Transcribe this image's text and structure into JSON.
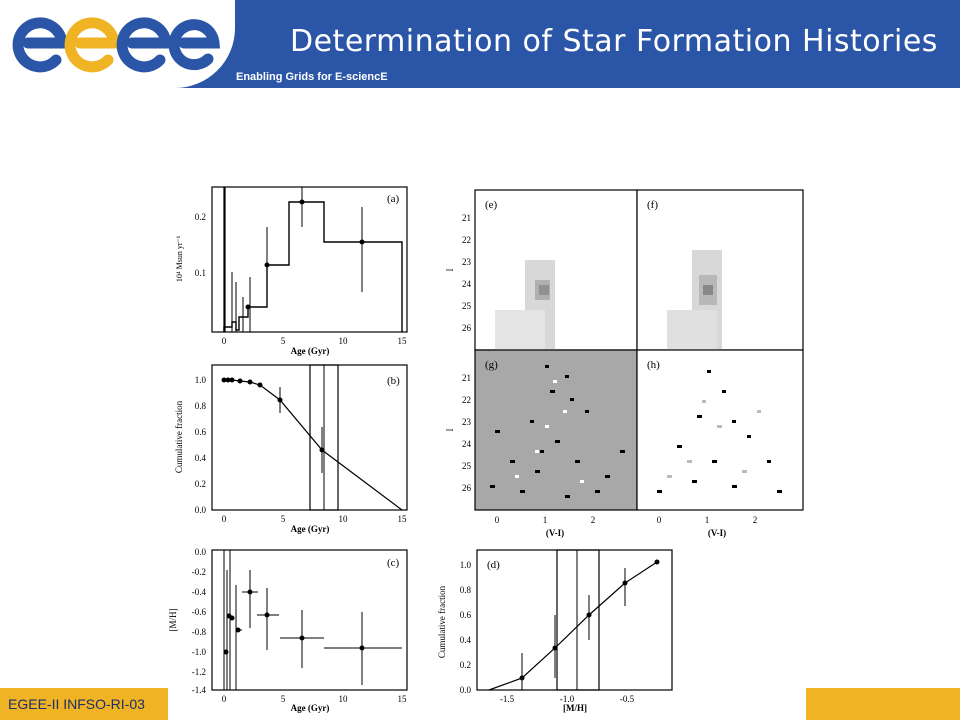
{
  "header": {
    "logo_text": "egee",
    "title": "Determination of Star Formation Histories",
    "subtitle": "Enabling Grids for E-sciencE"
  },
  "footer": {
    "text": "EGEE-II INFSO-RI-03"
  },
  "colors": {
    "header_blue": "#2b56a8",
    "logo_blue": "#2b56a8",
    "logo_yellow": "#f0b323",
    "footer_yellow": "#f0b323"
  },
  "panels": {
    "a": {
      "label": "(a)",
      "ylabel": "10⁴ Msun yr⁻¹",
      "xlabel": "Age (Gyr)",
      "yticks": [
        "0.1",
        "0.2"
      ],
      "xticks": [
        "0",
        "5",
        "10",
        "15"
      ]
    },
    "b": {
      "label": "(b)",
      "ylabel": "Cumulative fraction",
      "xlabel": "Age (Gyr)",
      "yticks": [
        "0.0",
        "0.2",
        "0.4",
        "0.6",
        "0.8",
        "1.0"
      ],
      "xticks": [
        "0",
        "5",
        "10",
        "15"
      ]
    },
    "c": {
      "label": "(c)",
      "ylabel": "[M/H]",
      "xlabel": "Age (Gyr)",
      "yticks": [
        "0.0",
        "-0.2",
        "-0.4",
        "-0.6",
        "-0.8",
        "-1.0",
        "-1.2",
        "-1.4"
      ],
      "xticks": [
        "0",
        "5",
        "10",
        "15"
      ]
    },
    "d": {
      "label": "(d)",
      "ylabel": "Cumulative fraction",
      "xlabel": "[M/H]",
      "yticks": [
        "0.0",
        "0.2",
        "0.4",
        "0.6",
        "0.8",
        "1.0"
      ],
      "xticks": [
        "-1.5",
        "-1.0",
        "-0.5"
      ]
    },
    "e": {
      "label": "(e)",
      "ylabel": "I",
      "yticks": [
        "21",
        "22",
        "23",
        "24",
        "25",
        "26"
      ]
    },
    "f": {
      "label": "(f)"
    },
    "g": {
      "label": "(g)",
      "ylabel": "I",
      "xlabel": "(V-I)",
      "yticks": [
        "21",
        "22",
        "23",
        "24",
        "25",
        "26"
      ],
      "xticks": [
        "0",
        "1",
        "2"
      ]
    },
    "h": {
      "label": "(h)",
      "xlabel": "(V-I)",
      "xticks": [
        "0",
        "1",
        "2"
      ]
    }
  }
}
